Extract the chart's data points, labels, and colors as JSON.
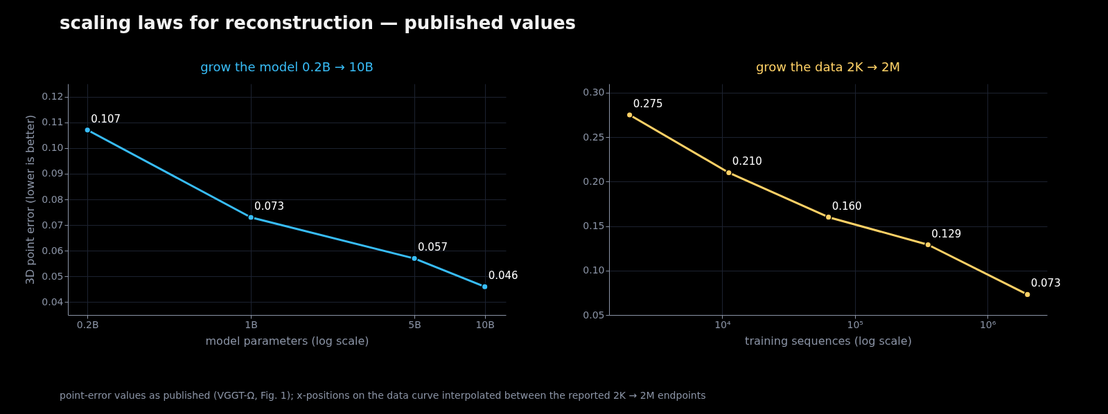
{
  "chart_data": [
    {
      "type": "line",
      "title": "scaling laws for reconstruction — published values",
      "subtitle": "grow the model 0.2B → 10B",
      "xlabel": "model parameters  (log scale)",
      "ylabel": "3D point error  (lower is better)",
      "x": [
        0.2,
        1,
        5,
        10
      ],
      "series": [
        {
          "color": "#38bdf8",
          "values": [
            0.107,
            0.073,
            0.057,
            0.046
          ],
          "value_labels": [
            "0.107",
            "0.073",
            "0.057",
            "0.046"
          ]
        }
      ],
      "xlim": [
        0.165,
        12.3
      ],
      "xticks": [
        {
          "value": 0.2,
          "label": "0.2B"
        },
        {
          "value": 1,
          "label": "1B"
        },
        {
          "value": 5,
          "label": "5B"
        },
        {
          "value": 10,
          "label": "10B"
        }
      ],
      "ylim": [
        0.035,
        0.125
      ],
      "yticks": [
        0.04,
        0.05,
        0.06,
        0.07,
        0.08,
        0.09,
        {
          "value": 0.1,
          "label": "0.10"
        },
        0.11,
        0.12
      ],
      "log": "x",
      "grid": true,
      "marker": "circle",
      "line_style": "solid",
      "annotations": [
        "point-error values as published (VGGT-Ω, Fig. 1); x-positions on the data curve interpolated between the reported 2K → 2M endpoints"
      ]
    },
    {
      "type": "line",
      "subtitle": "grow the data 2K → 2M",
      "xlabel": "training sequences  (log scale)",
      "x": [
        2000,
        11200,
        63200,
        356000,
        2000000
      ],
      "series": [
        {
          "color": "#ffd166",
          "values": [
            0.275,
            0.21,
            0.16,
            0.129,
            0.073
          ],
          "value_labels": [
            "0.275",
            "0.210",
            "0.160",
            "0.129",
            "0.073"
          ]
        }
      ],
      "xlim": [
        1400,
        2810000
      ],
      "xticks": [
        {
          "value": 10000,
          "label": "10⁴"
        },
        {
          "value": 100000,
          "label": "10⁵"
        },
        {
          "value": 1000000,
          "label": "10⁶"
        }
      ],
      "ylim": [
        0.05,
        0.31
      ],
      "yticks": [
        0.05,
        {
          "value": 0.1,
          "label": "0.10"
        },
        0.15,
        {
          "value": 0.2,
          "label": "0.20"
        },
        0.25,
        {
          "value": 0.3,
          "label": "0.30"
        }
      ],
      "log": "x",
      "grid": true,
      "marker": "circle",
      "line_style": "solid"
    }
  ]
}
